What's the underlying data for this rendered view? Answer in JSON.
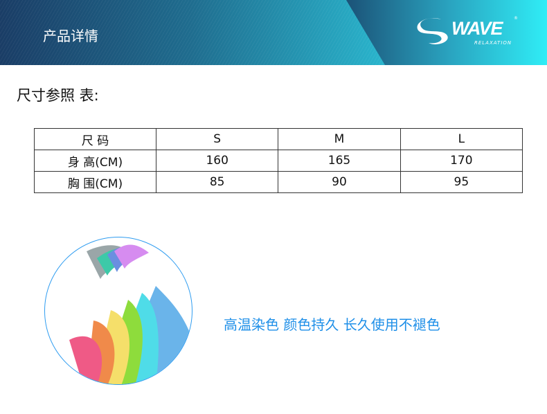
{
  "header": {
    "title": "产品详情",
    "logo": {
      "brand": "WAVE",
      "tagline": "RELAXATION",
      "mark": "®"
    }
  },
  "section_title": "尺寸参照 表:",
  "size_table": {
    "headers": [
      "尺 码",
      "S",
      "M",
      "L"
    ],
    "rows": [
      {
        "label": "身 高(CM)",
        "values": [
          "160",
          "165",
          "170"
        ]
      },
      {
        "label": "胸 围(CM)",
        "values": [
          "85",
          "90",
          "95"
        ]
      }
    ]
  },
  "feature": {
    "text": "高温染色 颜色持久 长久使用不褪色",
    "color": "#1e8fe8"
  }
}
